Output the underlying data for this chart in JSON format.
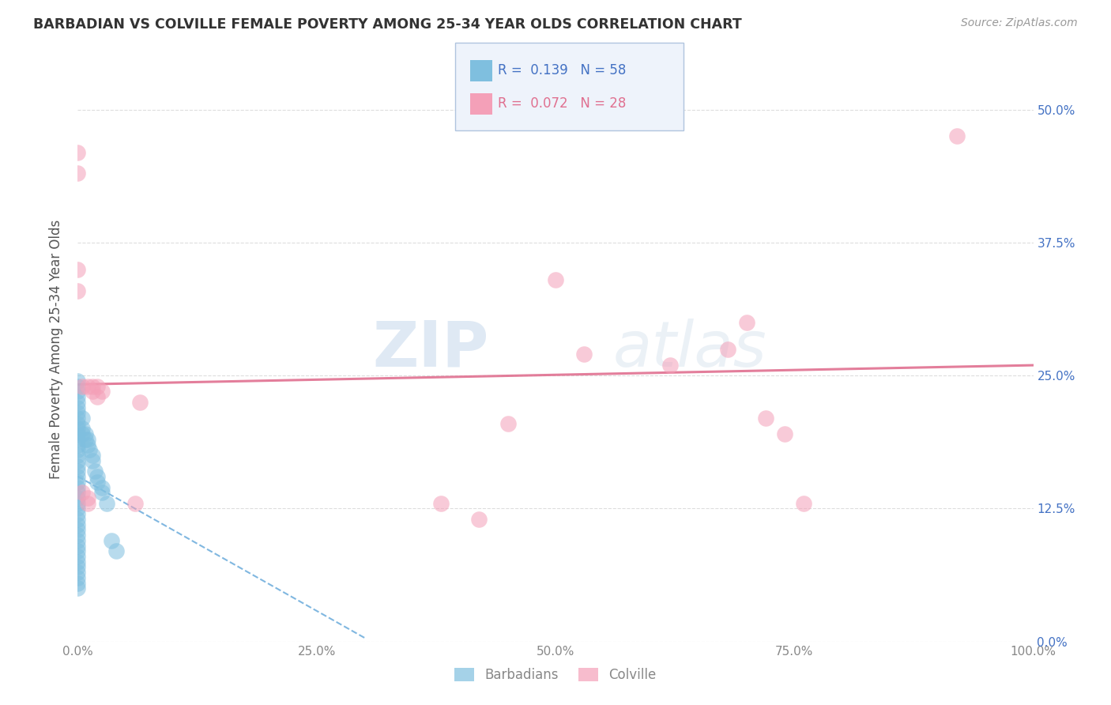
{
  "title": "BARBADIAN VS COLVILLE FEMALE POVERTY AMONG 25-34 YEAR OLDS CORRELATION CHART",
  "source": "Source: ZipAtlas.com",
  "ylabel": "Female Poverty Among 25-34 Year Olds",
  "xlim": [
    0,
    1.0
  ],
  "ylim": [
    0.0,
    0.55
  ],
  "x_ticks": [
    0.0,
    0.25,
    0.5,
    0.75,
    1.0
  ],
  "x_tick_labels": [
    "0.0%",
    "25.0%",
    "50.0%",
    "75.0%",
    "100.0%"
  ],
  "y_ticks": [
    0.0,
    0.125,
    0.25,
    0.375,
    0.5
  ],
  "y_tick_labels": [
    "0.0%",
    "12.5%",
    "25.0%",
    "37.5%",
    "50.0%"
  ],
  "barbadian_color": "#7fbfdf",
  "colville_color": "#f4a0b8",
  "barbadian_R": 0.139,
  "barbadian_N": 58,
  "colville_R": 0.072,
  "colville_N": 28,
  "legend_box_color": "#eef3fb",
  "legend_box_edge": "#b0c4de",
  "trend_blue_color": "#6aabdb",
  "trend_pink_color": "#e07090",
  "watermark_top": "ZIP",
  "watermark_bot": "atlas",
  "barbadian_x": [
    0.0,
    0.0,
    0.0,
    0.0,
    0.0,
    0.0,
    0.0,
    0.0,
    0.0,
    0.0,
    0.0,
    0.0,
    0.0,
    0.0,
    0.0,
    0.0,
    0.0,
    0.0,
    0.0,
    0.0,
    0.0,
    0.0,
    0.0,
    0.0,
    0.0,
    0.0,
    0.0,
    0.0,
    0.0,
    0.0,
    0.0,
    0.0,
    0.0,
    0.0,
    0.0,
    0.0,
    0.0,
    0.0,
    0.0,
    0.0,
    0.005,
    0.005,
    0.005,
    0.008,
    0.008,
    0.01,
    0.01,
    0.012,
    0.015,
    0.015,
    0.018,
    0.02,
    0.02,
    0.025,
    0.025,
    0.03,
    0.035,
    0.04
  ],
  "barbadian_y": [
    0.05,
    0.055,
    0.06,
    0.065,
    0.07,
    0.075,
    0.08,
    0.085,
    0.09,
    0.095,
    0.1,
    0.105,
    0.11,
    0.115,
    0.12,
    0.125,
    0.13,
    0.135,
    0.14,
    0.145,
    0.15,
    0.155,
    0.16,
    0.165,
    0.17,
    0.175,
    0.18,
    0.185,
    0.19,
    0.195,
    0.2,
    0.205,
    0.21,
    0.215,
    0.22,
    0.225,
    0.23,
    0.235,
    0.24,
    0.245,
    0.195,
    0.2,
    0.21,
    0.19,
    0.195,
    0.185,
    0.19,
    0.18,
    0.17,
    0.175,
    0.16,
    0.15,
    0.155,
    0.14,
    0.145,
    0.13,
    0.095,
    0.085
  ],
  "colville_x": [
    0.0,
    0.0,
    0.0,
    0.0,
    0.005,
    0.005,
    0.01,
    0.01,
    0.01,
    0.015,
    0.015,
    0.02,
    0.02,
    0.025,
    0.06,
    0.065,
    0.38,
    0.42,
    0.45,
    0.5,
    0.53,
    0.62,
    0.68,
    0.7,
    0.72,
    0.74,
    0.76,
    0.92
  ],
  "colville_y": [
    0.44,
    0.46,
    0.35,
    0.33,
    0.24,
    0.14,
    0.24,
    0.13,
    0.135,
    0.235,
    0.24,
    0.23,
    0.24,
    0.235,
    0.13,
    0.225,
    0.13,
    0.115,
    0.205,
    0.34,
    0.27,
    0.26,
    0.275,
    0.3,
    0.21,
    0.195,
    0.13,
    0.475
  ]
}
